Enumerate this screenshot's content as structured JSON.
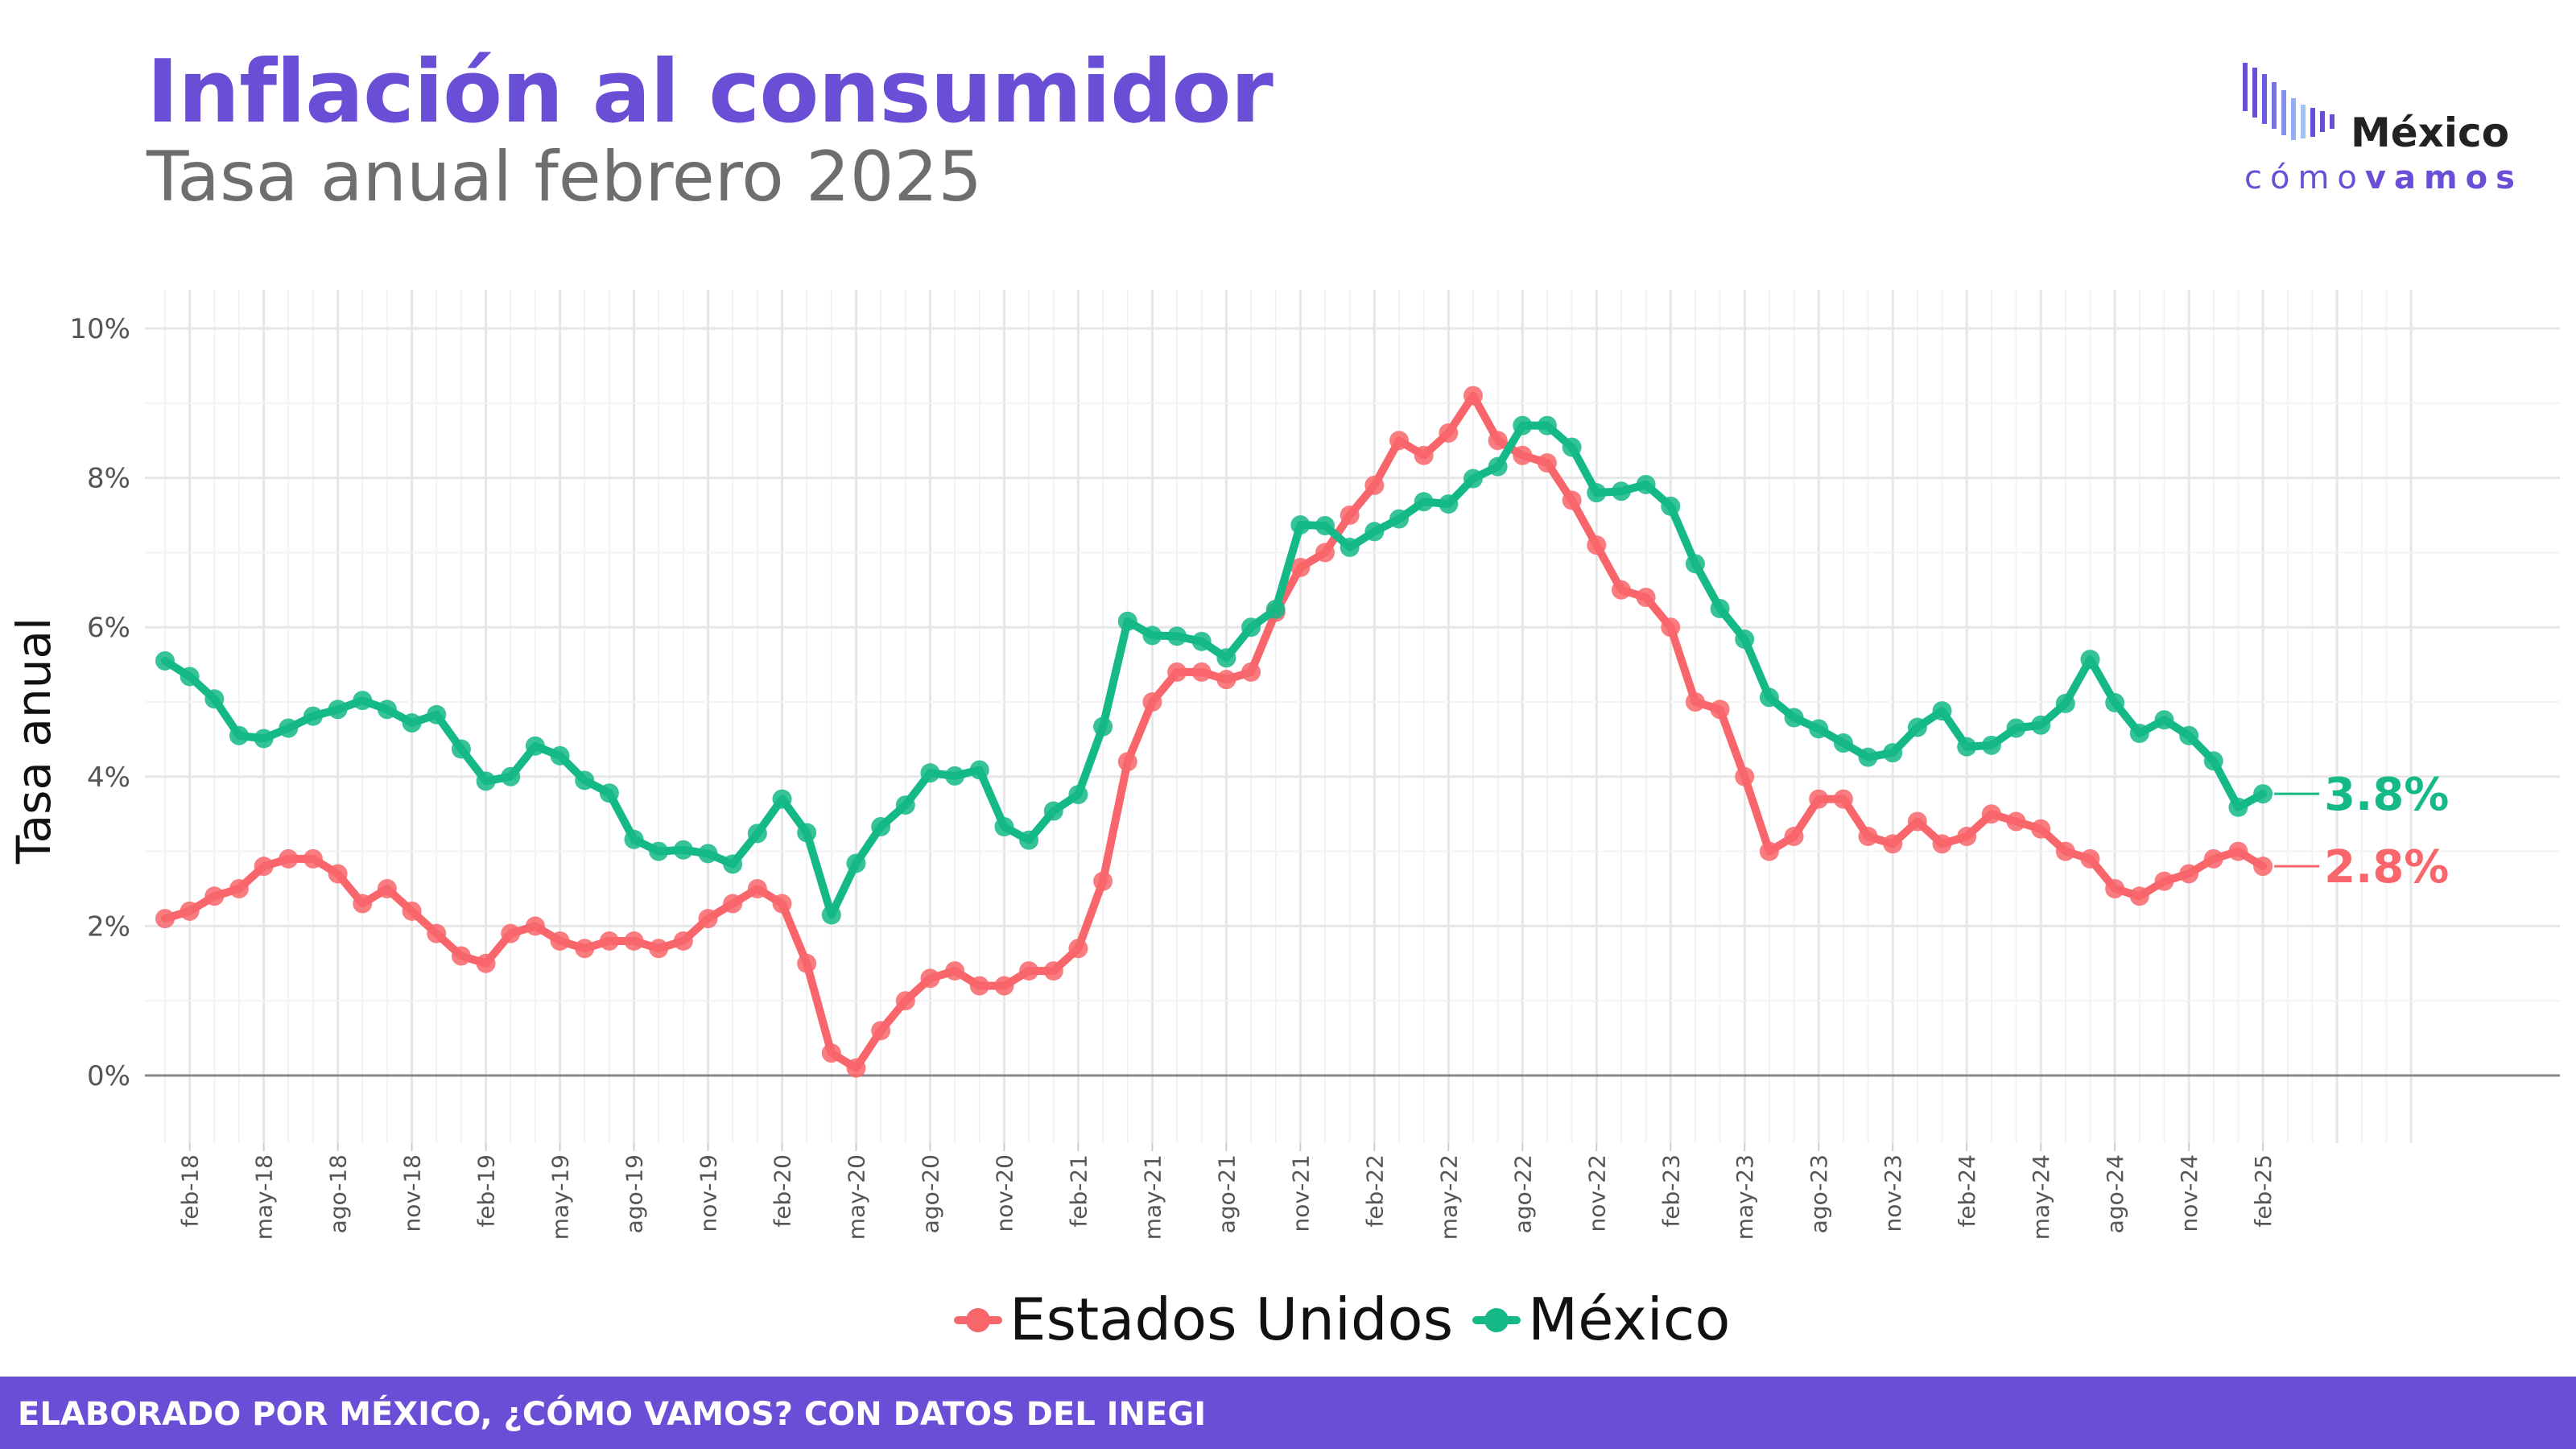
{
  "header": {
    "title": "Inflación al consumidor",
    "subtitle": "Tasa anual febrero 2025"
  },
  "logo": {
    "word": "México",
    "sub_light": "cómo",
    "sub_bold": "vamos"
  },
  "footer": {
    "text": "ELABORADO POR MÉXICO, ¿CÓMO VAMOS? CON DATOS DEL INEGI"
  },
  "colors": {
    "accent": "#6a4fd6",
    "us": "#f8656a",
    "mx": "#14b987"
  },
  "chart_data": {
    "type": "line",
    "ylabel": "Tasa anual",
    "xlabel": "",
    "ylim": [
      0,
      10
    ],
    "y_ticks": [
      "0%",
      "2%",
      "4%",
      "6%",
      "8%",
      "10%"
    ],
    "y_tick_values": [
      0,
      2,
      4,
      6,
      8,
      10
    ],
    "x_tick_labels": [
      "feb-18",
      "may-18",
      "ago-18",
      "nov-18",
      "feb-19",
      "may-19",
      "ago-19",
      "nov-19",
      "feb-20",
      "may-20",
      "ago-20",
      "nov-20",
      "feb-21",
      "may-21",
      "ago-21",
      "nov-21",
      "feb-22",
      "may-22",
      "ago-22",
      "nov-22",
      "feb-23",
      "may-23",
      "ago-23",
      "nov-23",
      "feb-24",
      "may-24",
      "ago-24",
      "nov-24",
      "feb-25"
    ],
    "x_start": "2018-01",
    "grid": true,
    "legend": "bottom",
    "series": [
      {
        "name": "Estados Unidos",
        "color": "#f8656a",
        "end_label": "2.8%",
        "values": [
          2.1,
          2.2,
          2.4,
          2.5,
          2.8,
          2.9,
          2.9,
          2.7,
          2.3,
          2.5,
          2.2,
          1.9,
          1.6,
          1.5,
          1.9,
          2.0,
          1.8,
          1.7,
          1.8,
          1.8,
          1.7,
          1.8,
          2.1,
          2.3,
          2.5,
          2.3,
          1.5,
          0.3,
          0.1,
          0.6,
          1.0,
          1.3,
          1.4,
          1.2,
          1.2,
          1.4,
          1.4,
          1.7,
          2.6,
          4.2,
          5.0,
          5.4,
          5.4,
          5.3,
          5.4,
          6.2,
          6.8,
          7.0,
          7.5,
          7.9,
          8.5,
          8.3,
          8.6,
          9.1,
          8.5,
          8.3,
          8.2,
          7.7,
          7.1,
          6.5,
          6.4,
          6.0,
          5.0,
          4.9,
          4.0,
          3.0,
          3.2,
          3.7,
          3.7,
          3.2,
          3.1,
          3.4,
          3.1,
          3.2,
          3.5,
          3.4,
          3.3,
          3.0,
          2.9,
          2.5,
          2.4,
          2.6,
          2.7,
          2.9,
          3.0,
          2.8
        ]
      },
      {
        "name": "México",
        "color": "#14b987",
        "end_label": "3.8%",
        "values": [
          5.55,
          5.34,
          5.04,
          4.55,
          4.51,
          4.65,
          4.81,
          4.9,
          5.02,
          4.9,
          4.72,
          4.83,
          4.37,
          3.94,
          4.0,
          4.41,
          4.28,
          3.95,
          3.78,
          3.16,
          3.0,
          3.02,
          2.97,
          2.83,
          3.24,
          3.7,
          3.25,
          2.15,
          2.84,
          3.33,
          3.62,
          4.05,
          4.01,
          4.09,
          3.33,
          3.15,
          3.54,
          3.76,
          4.67,
          6.08,
          5.89,
          5.88,
          5.81,
          5.59,
          6.0,
          6.24,
          7.37,
          7.36,
          7.07,
          7.28,
          7.45,
          7.68,
          7.65,
          7.99,
          8.15,
          8.7,
          8.7,
          8.41,
          7.8,
          7.82,
          7.91,
          7.62,
          6.85,
          6.25,
          5.84,
          5.06,
          4.79,
          4.64,
          4.45,
          4.26,
          4.32,
          4.66,
          4.88,
          4.4,
          4.42,
          4.65,
          4.69,
          4.98,
          5.57,
          4.99,
          4.58,
          4.76,
          4.55,
          4.21,
          3.59,
          3.77
        ]
      }
    ]
  }
}
